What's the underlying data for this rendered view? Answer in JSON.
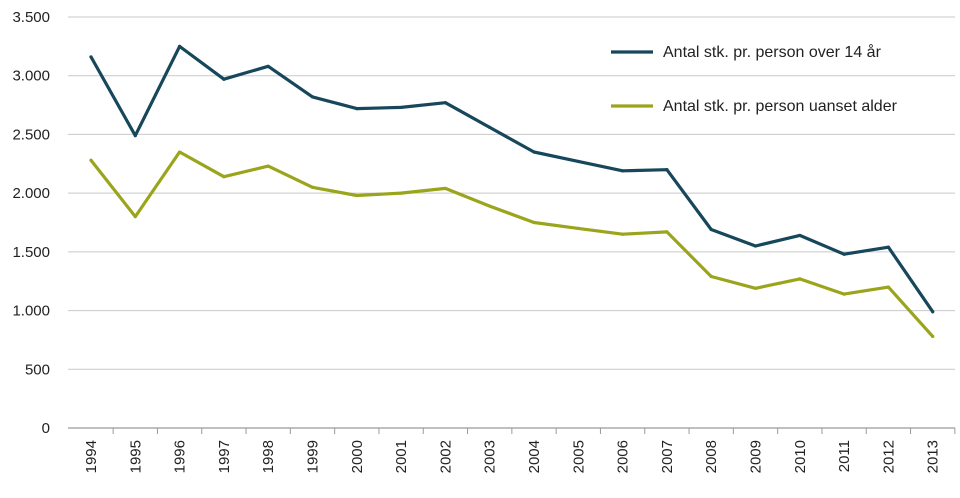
{
  "chart_data": {
    "type": "line",
    "x": [
      "1994",
      "1995",
      "1996",
      "1997",
      "1998",
      "1999",
      "2000",
      "2001",
      "2002",
      "2003",
      "2004",
      "2005",
      "2006",
      "2007",
      "2008",
      "2009",
      "2010",
      "2011",
      "2012",
      "2013"
    ],
    "series": [
      {
        "name": "Antal stk. pr. person over 14 år",
        "color": "#17475a",
        "values": [
          3160,
          2490,
          3250,
          2970,
          3080,
          2820,
          2720,
          2730,
          2770,
          2560,
          2350,
          2270,
          2190,
          2200,
          1690,
          1550,
          1640,
          1480,
          1540,
          990
        ]
      },
      {
        "name": "Antal stk. pr. person uanset alder",
        "color": "#9aa51c",
        "values": [
          2280,
          1800,
          2350,
          2140,
          2230,
          2050,
          1980,
          2000,
          2040,
          1890,
          1750,
          1700,
          1650,
          1670,
          1290,
          1190,
          1270,
          1140,
          1200,
          780
        ]
      }
    ],
    "yticks": [
      0,
      500,
      1000,
      1500,
      2000,
      2500,
      3000,
      3500
    ],
    "ytick_labels": [
      "0",
      "500",
      "1.000",
      "1.500",
      "2.000",
      "2.500",
      "3.000",
      "3.500"
    ],
    "ylim": [
      0,
      3500
    ],
    "grid": "horizontal",
    "legend_position": "top-right"
  }
}
